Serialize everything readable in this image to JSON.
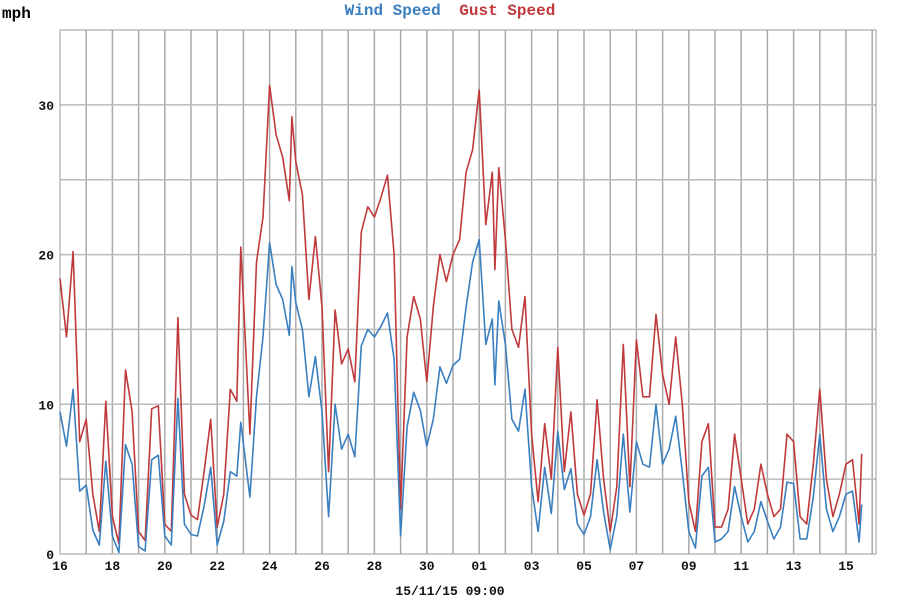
{
  "chart_data": {
    "type": "line",
    "title_parts": [
      {
        "text": "Wind Speed",
        "color": "#3a7fc0"
      },
      {
        "text": "Gust Speed",
        "color": "#c0393b"
      }
    ],
    "ylabel": "mph",
    "xlabel": "15/11/15 09:00",
    "ylim": [
      0,
      35
    ],
    "xlim": [
      0,
      30.7
    ],
    "x_unit": "days since 16 Oct 00:00",
    "grid": true,
    "yticks": [
      {
        "value": 0,
        "label": "0"
      },
      {
        "value": 10,
        "label": "10"
      },
      {
        "value": 20,
        "label": "20"
      },
      {
        "value": 30,
        "label": "30"
      }
    ],
    "xticks": [
      {
        "value": 0,
        "label": "16"
      },
      {
        "value": 2,
        "label": "18"
      },
      {
        "value": 4,
        "label": "20"
      },
      {
        "value": 6,
        "label": "22"
      },
      {
        "value": 8,
        "label": "24"
      },
      {
        "value": 10,
        "label": "26"
      },
      {
        "value": 12,
        "label": "28"
      },
      {
        "value": 14,
        "label": "30"
      },
      {
        "value": 16,
        "label": "01"
      },
      {
        "value": 18,
        "label": "03"
      },
      {
        "value": 20,
        "label": "05"
      },
      {
        "value": 22,
        "label": "07"
      },
      {
        "value": 24,
        "label": "09"
      },
      {
        "value": 26,
        "label": "11"
      },
      {
        "value": 28,
        "label": "13"
      },
      {
        "value": 30,
        "label": "15"
      }
    ],
    "x": [
      0,
      0.25,
      0.5,
      0.75,
      1,
      1.25,
      1.5,
      1.75,
      2,
      2.25,
      2.5,
      2.75,
      3,
      3.25,
      3.5,
      3.75,
      4,
      4.25,
      4.5,
      4.75,
      5,
      5.25,
      5.5,
      5.75,
      6,
      6.25,
      6.5,
      6.75,
      6.9,
      7.25,
      7.5,
      7.75,
      8,
      8.25,
      8.5,
      8.75,
      8.85,
      9,
      9.25,
      9.5,
      9.75,
      10,
      10.25,
      10.5,
      10.75,
      11,
      11.25,
      11.5,
      11.75,
      12,
      12.25,
      12.5,
      12.75,
      13,
      13.25,
      13.5,
      13.75,
      14,
      14.25,
      14.5,
      14.75,
      15,
      15.25,
      15.5,
      15.75,
      16,
      16.25,
      16.5,
      16.6,
      16.75,
      17,
      17.25,
      17.5,
      17.75,
      18,
      18.25,
      18.5,
      18.75,
      19,
      19.25,
      19.5,
      19.75,
      20,
      20.25,
      20.5,
      20.75,
      21,
      21.25,
      21.5,
      21.75,
      22,
      22.25,
      22.5,
      22.75,
      23,
      23.25,
      23.5,
      23.75,
      24,
      24.25,
      24.5,
      24.75,
      25,
      25.25,
      25.5,
      25.75,
      26,
      26.25,
      26.5,
      26.75,
      27,
      27.25,
      27.5,
      27.75,
      28,
      28.25,
      28.5,
      28.75,
      29,
      29.25,
      29.5,
      29.75,
      30,
      30.25,
      30.5,
      30.6
    ],
    "series": [
      {
        "name": "Wind Speed",
        "color": "#3a7fc0",
        "values": [
          9.5,
          7.2,
          11.0,
          4.2,
          4.6,
          1.6,
          0.6,
          6.2,
          1.2,
          0.1,
          7.3,
          6.0,
          0.5,
          0.2,
          6.3,
          6.6,
          1.2,
          0.6,
          10.4,
          2.0,
          1.3,
          1.2,
          3.2,
          5.8,
          0.6,
          2.2,
          5.5,
          5.2,
          8.8,
          3.8,
          10.5,
          14.5,
          20.8,
          18.0,
          17.0,
          14.6,
          19.2,
          16.8,
          15.0,
          10.5,
          13.2,
          9.5,
          2.5,
          10.0,
          7.0,
          8.0,
          6.5,
          13.9,
          15.0,
          14.5,
          15.2,
          16.1,
          13.0,
          1.2,
          8.5,
          10.8,
          9.6,
          7.2,
          9.0,
          12.5,
          11.4,
          12.6,
          13.0,
          16.5,
          19.5,
          21.0,
          14.0,
          15.7,
          11.3,
          16.9,
          14.0,
          9.0,
          8.2,
          11.0,
          4.5,
          1.5,
          5.8,
          2.7,
          8.2,
          4.3,
          5.7,
          2.0,
          1.3,
          2.5,
          6.3,
          2.8,
          0.3,
          2.5,
          8.0,
          2.8,
          7.5,
          6.0,
          5.8,
          10.0,
          6.0,
          7.0,
          9.2,
          5.5,
          1.5,
          0.4,
          5.2,
          5.8,
          0.8,
          1.0,
          1.5,
          4.5,
          2.5,
          0.8,
          1.5,
          3.5,
          2.2,
          1.0,
          1.8,
          4.8,
          4.7,
          1.0,
          1.0,
          3.8,
          8.0,
          3.0,
          1.5,
          2.5,
          4.0,
          4.2,
          0.8,
          3.3
        ]
      },
      {
        "name": "Gust Speed",
        "color": "#c0393b",
        "values": [
          18.4,
          14.5,
          20.2,
          7.5,
          9.0,
          4.0,
          1.5,
          10.2,
          2.5,
          0.7,
          12.3,
          9.5,
          1.5,
          0.9,
          9.7,
          9.9,
          2.0,
          1.5,
          15.8,
          4.0,
          2.6,
          2.3,
          5.5,
          9.0,
          1.8,
          4.0,
          11.0,
          10.2,
          20.5,
          8.0,
          19.5,
          22.5,
          31.3,
          28.0,
          26.5,
          23.6,
          29.2,
          26.2,
          24.0,
          17.0,
          21.2,
          16.5,
          5.5,
          16.3,
          12.7,
          13.7,
          11.5,
          21.5,
          23.2,
          22.5,
          23.8,
          25.3,
          20.0,
          3.0,
          14.5,
          17.2,
          15.7,
          11.5,
          16.5,
          20.0,
          18.2,
          20.0,
          21.0,
          25.5,
          27.0,
          31.0,
          22.0,
          25.5,
          19.0,
          25.8,
          21.0,
          15.0,
          13.8,
          17.2,
          8.0,
          3.5,
          8.7,
          5.0,
          13.8,
          5.5,
          9.5,
          4.0,
          2.6,
          4.0,
          10.3,
          5.0,
          1.5,
          4.5,
          14.0,
          4.5,
          14.3,
          10.5,
          10.5,
          16.0,
          12.0,
          10.0,
          14.5,
          10.0,
          3.5,
          1.5,
          7.5,
          8.7,
          1.8,
          1.8,
          3.0,
          8.0,
          5.0,
          2.0,
          3.0,
          6.0,
          4.0,
          2.5,
          3.0,
          8.0,
          7.5,
          2.5,
          2.0,
          6.0,
          11.0,
          5.0,
          2.5,
          4.0,
          6.0,
          6.3,
          2.0,
          6.7
        ]
      }
    ]
  }
}
